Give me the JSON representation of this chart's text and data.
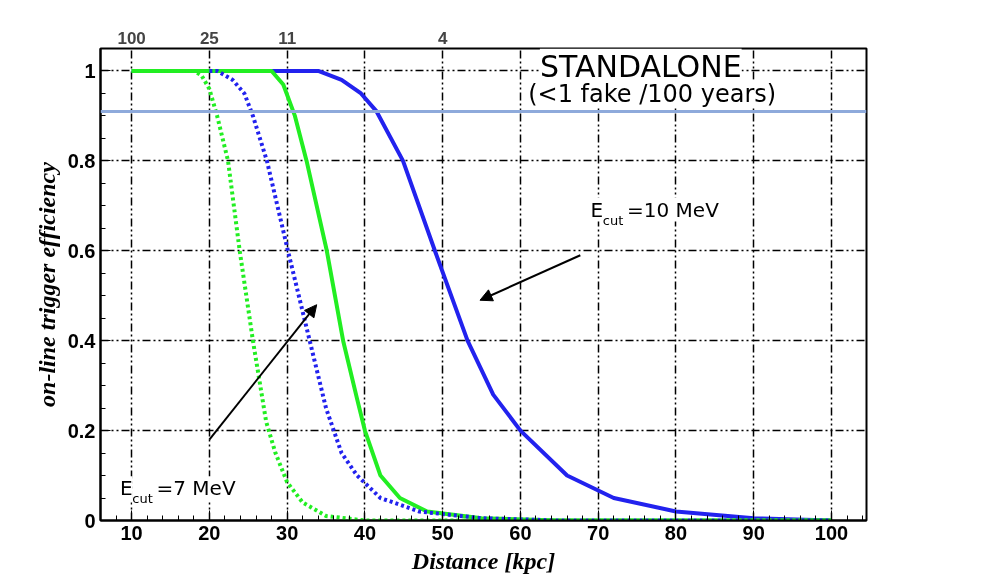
{
  "chart_data": {
    "type": "line",
    "xlabel": "Distance [kpc]",
    "ylabel": "on-line trigger efficiency",
    "xlim": [
      6,
      104.5
    ],
    "xticks": [
      10,
      20,
      30,
      40,
      50,
      60,
      70,
      80,
      90,
      100
    ],
    "ylim": [
      0,
      1.05
    ],
    "yticks": [
      0,
      0.2,
      0.4,
      0.6,
      0.8,
      1
    ],
    "grid": true,
    "marker": "none",
    "series": [
      {
        "color": "#22ee22",
        "line_style": "dotted",
        "x": [
          10,
          18,
          19,
          20,
          21,
          22.4,
          23.9,
          25.6,
          27.3,
          28.5,
          30,
          32,
          35,
          40,
          100
        ],
        "values": [
          1,
          1,
          0.99,
          0.96,
          0.9,
          0.8,
          0.6,
          0.4,
          0.22,
          0.15,
          0.085,
          0.04,
          0.01,
          0,
          0
        ]
      },
      {
        "color": "#2222ee",
        "line_style": "dotted",
        "x": [
          20,
          21,
          23,
          24.5,
          25.6,
          27.4,
          30.1,
          32.9,
          35,
          37,
          39,
          42,
          47,
          55,
          65,
          100
        ],
        "values": [
          1,
          1,
          0.98,
          0.95,
          0.9,
          0.8,
          0.6,
          0.4,
          0.25,
          0.15,
          0.1,
          0.05,
          0.02,
          0.005,
          0,
          0
        ]
      },
      {
        "color": "#22ee22",
        "line_style": "solid",
        "x": [
          10,
          28,
          29.5,
          31,
          32.5,
          35.1,
          37.2,
          39,
          40,
          42,
          44.5,
          48,
          55,
          65,
          100
        ],
        "values": [
          1,
          1,
          0.97,
          0.9,
          0.8,
          0.6,
          0.4,
          0.27,
          0.2,
          0.1,
          0.05,
          0.02,
          0.005,
          0,
          0
        ]
      },
      {
        "color": "#2222ee",
        "line_style": "solid",
        "x": [
          10,
          34,
          37,
          39.5,
          41.5,
          44.9,
          49,
          53.2,
          56.5,
          60,
          66,
          72,
          80,
          90,
          100
        ],
        "values": [
          1,
          1,
          0.98,
          0.95,
          0.91,
          0.8,
          0.6,
          0.4,
          0.28,
          0.2,
          0.1,
          0.05,
          0.02,
          0.005,
          0
        ]
      }
    ],
    "ref_lines": [
      {
        "axis": "y",
        "value": 0.91,
        "color": "#8eaadb"
      }
    ],
    "annotations": [
      "E$_{cut}$=10 MeV",
      "E$_{cut}$=7 MeV",
      "STANDALONE",
      "(<1 fake /100 years)",
      "100",
      "25",
      "11",
      "4"
    ]
  }
}
